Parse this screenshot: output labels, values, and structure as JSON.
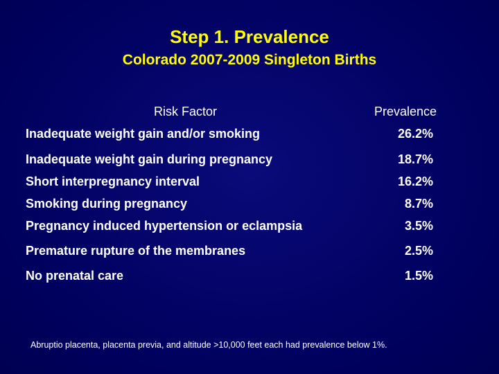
{
  "slide": {
    "title": "Step 1. Prevalence",
    "subtitle": "Colorado 2007-2009 Singleton Births",
    "colors": {
      "background": "#000066",
      "title": "#ffff00",
      "text": "#ffffff"
    }
  },
  "table": {
    "headers": {
      "risk_factor": "Risk Factor",
      "prevalence": "Prevalence"
    },
    "rows": [
      {
        "label": "Inadequate weight gain and/or smoking",
        "value": "26.2%"
      },
      {
        "label": "Inadequate weight gain during pregnancy",
        "value": "18.7%"
      },
      {
        "label": "Short interpregnancy interval",
        "value": "16.2%"
      },
      {
        "label": "Smoking during pregnancy",
        "value": "8.7%"
      },
      {
        "label": "Pregnancy induced hypertension or eclampsia",
        "value": "3.5%"
      },
      {
        "label": "Premature rupture of the membranes",
        "value": "2.5%"
      },
      {
        "label": "No prenatal care",
        "value": "1.5%"
      }
    ]
  },
  "footnote": "Abruptio placenta, placenta previa, and altitude >10,000 feet each had prevalence below 1%."
}
